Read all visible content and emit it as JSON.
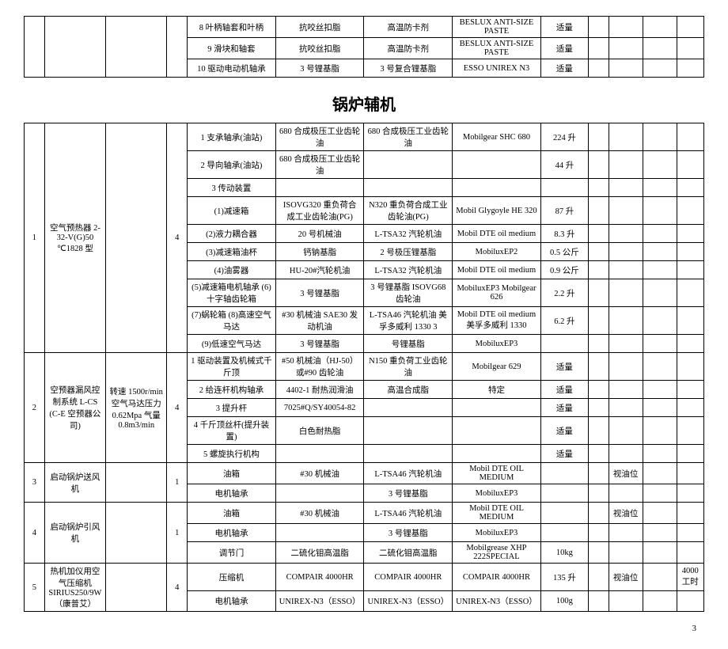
{
  "top_table": {
    "rows": [
      [
        "",
        "",
        "",
        "",
        "8 叶柄轴套和叶柄",
        "抗咬丝扣脂",
        "高温防卡剂",
        "BESLUX ANTI-SIZE PASTE",
        "适量",
        "",
        "",
        "",
        ""
      ],
      [
        "",
        "",
        "",
        "",
        "9 滑块和轴套",
        "抗咬丝扣脂",
        "高温防卡剂",
        "BESLUX ANTI-SIZE PASTE",
        "适量",
        "",
        "",
        "",
        ""
      ],
      [
        "",
        "",
        "",
        "",
        "10 驱动电动机轴承",
        "3 号锂基脂",
        "3 号复合锂基脂",
        "ESSO UNIREX N3",
        "适量",
        "",
        "",
        "",
        ""
      ]
    ]
  },
  "section_title": "锅炉辅机",
  "main_table": {
    "col_widths": [
      "3%",
      "9%",
      "9%",
      "3%",
      "13%",
      "13%",
      "13%",
      "13%",
      "7%",
      "3%",
      "5%",
      "5%",
      "4%"
    ],
    "rows": [
      {
        "cells": [
          "1",
          "空气预热器 2-32-V(G)50 ℃1828 型",
          "",
          "4",
          "1 支承轴承(油站)",
          "680 合成极压工业齿轮油",
          "680 合成极压工业齿轮油",
          "Mobilgear SHC 680",
          "224 升",
          "",
          "",
          "",
          ""
        ],
        "rowspan": {
          "0": 10,
          "1": 10,
          "2": 10,
          "3": 10
        }
      },
      {
        "cells": [
          "2 导向轴承(油站)",
          "680 合成极压工业齿轮油",
          "",
          "",
          "44 升",
          "",
          "",
          "",
          ""
        ]
      },
      {
        "cells": [
          "3 传动装置",
          "",
          "",
          "",
          "",
          "",
          "",
          "",
          ""
        ]
      },
      {
        "cells": [
          "(1)减速箱",
          "ISOVG320 重负荷合成工业齿轮油(PG)",
          "N320 重负荷合成工业齿轮油(PG)",
          "Mobil Glygoyle HE 320",
          "87 升",
          "",
          "",
          "",
          ""
        ]
      },
      {
        "cells": [
          "(2)液力耦合器",
          "20 号机械油",
          "L-TSA32 汽轮机油",
          "Mobil DTE oil medium",
          "8.3 升",
          "",
          "",
          "",
          ""
        ]
      },
      {
        "cells": [
          "(3)减速箱油杯",
          "钙钠基脂",
          "2 号极压锂基脂",
          "MobiluxEP2",
          "0.5 公斤",
          "",
          "",
          "",
          ""
        ]
      },
      {
        "cells": [
          "(4)油雾器",
          "HU-20#汽轮机油",
          "L-TSA32 汽轮机油",
          "Mobil DTE oil medium",
          "0.9 公斤",
          "",
          "",
          "",
          ""
        ]
      },
      {
        "cells": [
          "(5)减速箱电机轴承\n(6)十字轴齿轮箱",
          "3 号锂基脂",
          "3 号锂基脂 ISOVG68 齿轮油",
          "MobiluxEP3 Mobilgear 626",
          "2.2 升",
          "",
          "",
          "",
          ""
        ]
      },
      {
        "cells": [
          "(7)蜗轮箱\n(8)高速空气马达",
          "#30 机械油 SAE30 发动机油",
          "L-TSA46 汽轮机油 美孚多威利 1330   3",
          "Mobil DTE oil medium 美孚多威利 1330",
          "6.2 升",
          "",
          "",
          "",
          ""
        ]
      },
      {
        "cells": [
          "(9)低速空气马达",
          "3 号锂基脂",
          "号锂基脂",
          "MobiluxEP3",
          "",
          "",
          "",
          "",
          ""
        ]
      },
      {
        "cells": [
          "2",
          "空预器漏风控制系统 L-CS (C-E 空预器公司)",
          "转速 1500r/min 空气马达压力 0.62Mpa 气量 0.8m3/min",
          "4",
          "1 驱动装置及机械式千斤顶",
          "#50 机械油（HJ-50）或#90 齿轮油",
          "N150 重负荷工业齿轮油",
          "Mobilgear 629",
          "适量",
          "",
          "",
          "",
          ""
        ],
        "rowspan": {
          "0": 5,
          "1": 5,
          "2": 5,
          "3": 5
        }
      },
      {
        "cells": [
          "2 给连杆机构轴承",
          "4402-1 耐热润滑油",
          "高温合成脂",
          "特定",
          "适量",
          "",
          "",
          "",
          ""
        ]
      },
      {
        "cells": [
          "3 提升杆",
          "7025#Q/SY40054-82",
          "",
          "",
          "适量",
          "",
          "",
          "",
          ""
        ]
      },
      {
        "cells": [
          "4 千斤顶丝杆(提升装置)",
          "白色耐热脂",
          "",
          "",
          "适量",
          "",
          "",
          "",
          ""
        ]
      },
      {
        "cells": [
          "5 螺旋执行机构",
          "",
          "",
          "",
          "适量",
          "",
          "",
          "",
          ""
        ]
      },
      {
        "cells": [
          "3",
          "启动锅炉送风机",
          "",
          "1",
          "油箱",
          "#30 机械油",
          "L-TSA46 汽轮机油",
          "Mobil DTE OIL MEDIUM",
          "",
          "",
          "视油位",
          "",
          ""
        ],
        "rowspan": {
          "0": 2,
          "1": 2,
          "2": 2,
          "3": 2
        }
      },
      {
        "cells": [
          "电机轴承",
          "",
          "3 号锂基脂",
          "MobiluxEP3",
          "",
          "",
          "",
          "",
          ""
        ]
      },
      {
        "cells": [
          "4",
          "启动锅炉引风机",
          "",
          "1",
          "油箱",
          "#30 机械油",
          "L-TSA46 汽轮机油",
          "Mobil DTE OIL MEDIUM",
          "",
          "",
          "视油位",
          "",
          ""
        ],
        "rowspan": {
          "0": 3,
          "1": 3,
          "2": 3,
          "3": 3
        }
      },
      {
        "cells": [
          "电机轴承",
          "",
          "3 号锂基脂",
          "MobiluxEP3",
          "",
          "",
          "",
          "",
          ""
        ]
      },
      {
        "cells": [
          "调节门",
          "二硫化钼高温脂",
          "二硫化钼高温脂",
          "Mobilgrease XHP 222SPECIAL",
          "10kg",
          "",
          "",
          "",
          ""
        ]
      },
      {
        "cells": [
          "5",
          "热机加仪用空气压缩机 SIRIUS250/9W（康普艾）",
          "",
          "4",
          "压缩机",
          "COMPAIR 4000HR",
          "COMPAIR 4000HR",
          "COMPAIR 4000HR",
          "135 升",
          "",
          "视油位",
          "",
          "4000 工时"
        ],
        "rowspan": {
          "0": 2,
          "1": 2,
          "2": 2,
          "3": 2
        }
      },
      {
        "cells": [
          "电机轴承",
          "UNIREX-N3（ESSO）",
          "UNIREX-N3（ESSO）",
          "UNIREX-N3（ESSO）",
          "100g",
          "",
          "",
          "",
          ""
        ]
      }
    ]
  },
  "page_number": "3"
}
